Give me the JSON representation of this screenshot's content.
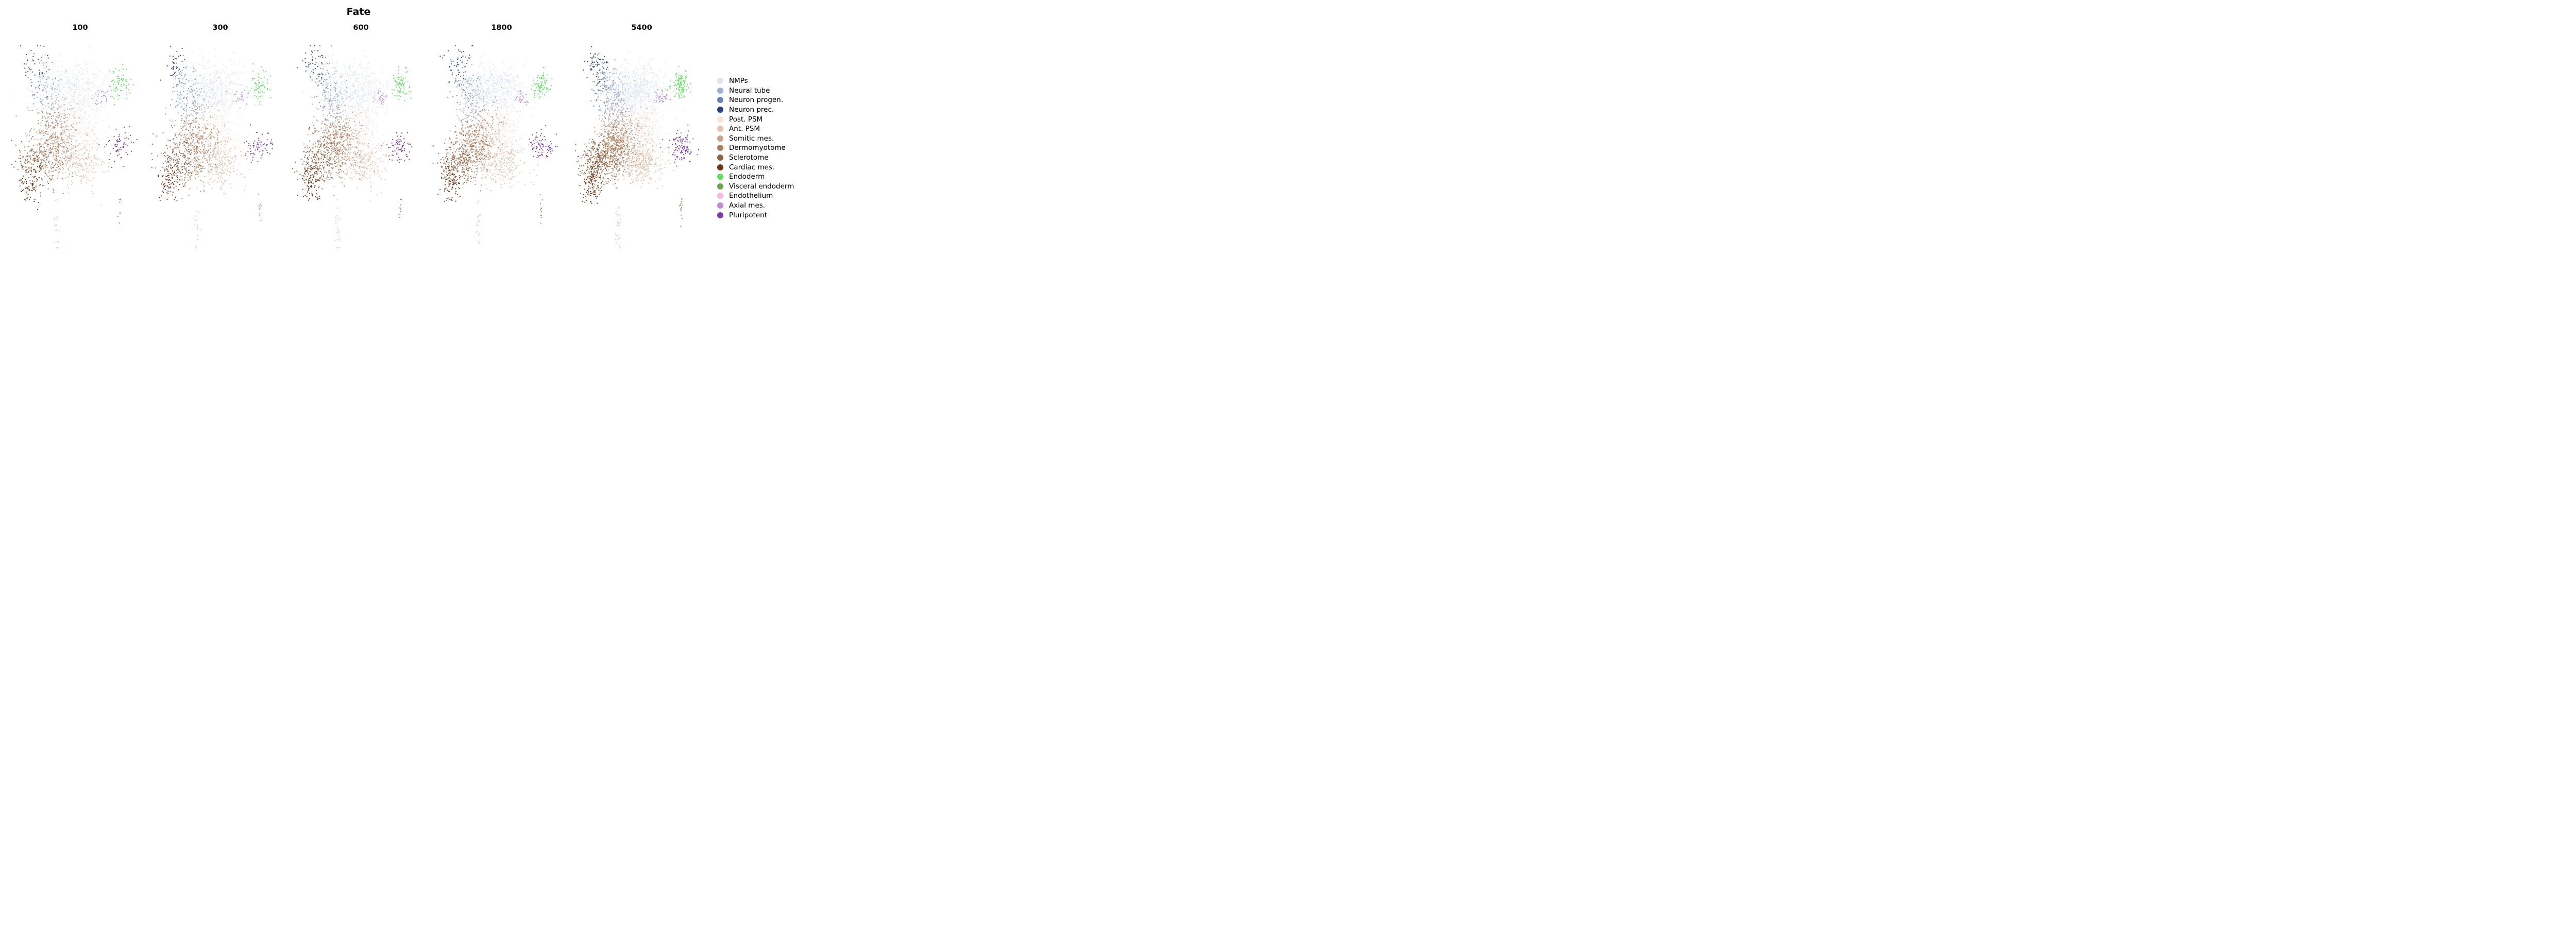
{
  "chart_data": {
    "type": "scatter",
    "title": "Fate",
    "panels": [
      {
        "label": "100",
        "n_points": 1800
      },
      {
        "label": "300",
        "n_points": 1900
      },
      {
        "label": "600",
        "n_points": 2100
      },
      {
        "label": "1800",
        "n_points": 2200
      },
      {
        "label": "5400",
        "n_points": 3000
      }
    ],
    "legend_position": "right",
    "legend": [
      {
        "name": "NMPs",
        "color": "#dce6f5"
      },
      {
        "name": "Neural tube",
        "color": "#9bb0d2"
      },
      {
        "name": "Neuron progen.",
        "color": "#6a83b3"
      },
      {
        "name": "Neuron prec.",
        "color": "#2c4278"
      },
      {
        "name": "Post. PSM",
        "color": "#fbe3d8"
      },
      {
        "name": "Ant. PSM",
        "color": "#e2c6b1"
      },
      {
        "name": "Somitic mes.",
        "color": "#c9a48a"
      },
      {
        "name": "Dermomyotome",
        "color": "#a9805f"
      },
      {
        "name": "Sclerotome",
        "color": "#8e6445"
      },
      {
        "name": "Cardiac mes.",
        "color": "#6b3716"
      },
      {
        "name": "Endoderm",
        "color": "#5fe05c"
      },
      {
        "name": "Visceral endoderm",
        "color": "#6aa84f"
      },
      {
        "name": "Endothelium",
        "color": "#f4bcdc"
      },
      {
        "name": "Axial mes.",
        "color": "#c28ad0"
      },
      {
        "name": "Pluripotent",
        "color": "#7b3fac"
      }
    ],
    "grid": false,
    "axes": "off"
  }
}
